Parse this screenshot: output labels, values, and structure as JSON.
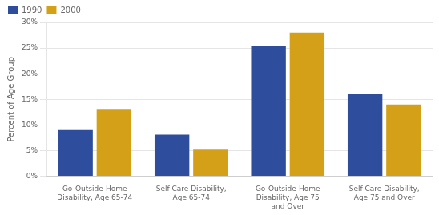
{
  "chart_data": {
    "type": "bar",
    "categories": [
      "Go-Outside-Home\nDisability, Age 65-74",
      "Self-Care Disability,\nAge 65-74",
      "Go-Outside-Home\nDisability, Age 75\nand Over",
      "Self-Care Disability,\nAge 75 and Over"
    ],
    "series": [
      {
        "name": "1990",
        "color": "#2E4D9C",
        "values": [
          9.0,
          8.1,
          25.5,
          16.0
        ]
      },
      {
        "name": "2000",
        "color": "#D4A017",
        "values": [
          13.0,
          5.2,
          28.0,
          14.0
        ]
      }
    ],
    "ylabel": "Percent of Age Group",
    "ylim": [
      0,
      30
    ],
    "yticks": [
      {
        "value": 0,
        "label": "0%"
      },
      {
        "value": 5,
        "label": "5%"
      },
      {
        "value": 10,
        "label": "10%"
      },
      {
        "value": 15,
        "label": "15%"
      },
      {
        "value": 20,
        "label": "20%"
      },
      {
        "value": 25,
        "label": "25%"
      },
      {
        "value": 30,
        "label": "30%"
      }
    ],
    "grid": true,
    "legend": "upper left"
  }
}
